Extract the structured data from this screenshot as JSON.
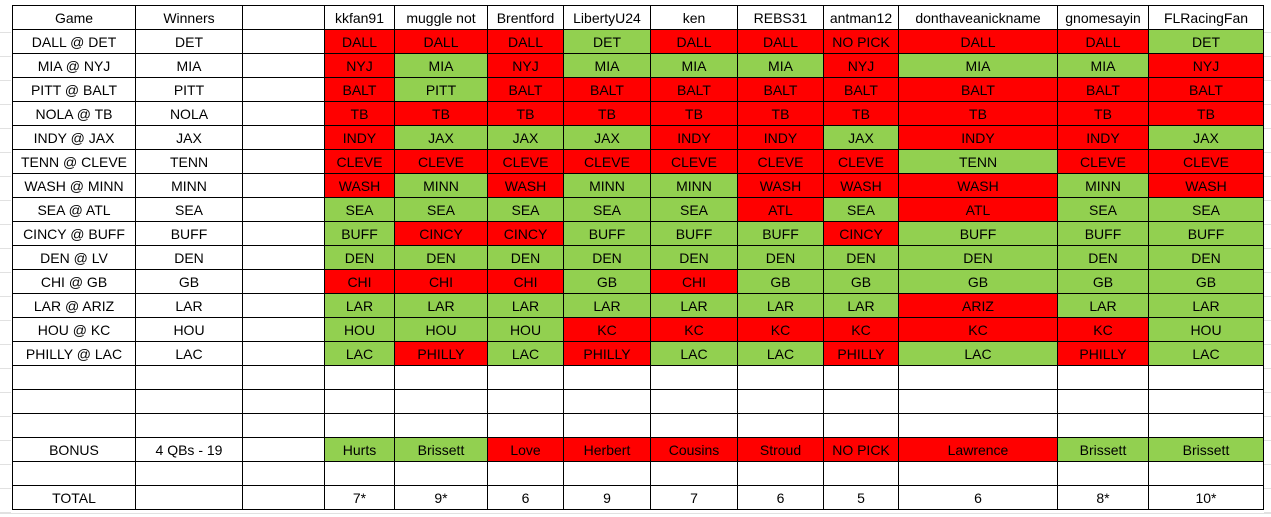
{
  "sheet": {
    "colors": {
      "correct": "#92D050",
      "wrong": "#FF0000",
      "gridline": "#e1e1e1",
      "border": "#000000"
    },
    "header": {
      "game": "Game",
      "winners": "Winners",
      "players": [
        "kkfan91",
        "muggle not",
        "Brentford",
        "LibertyU24",
        "ken",
        "REBS31",
        "antman12",
        "donthaveanickname",
        "gnomesayin",
        "FLRacingFan"
      ]
    },
    "games": [
      {
        "game": "DALL @ DET",
        "winner": "DET",
        "picks": [
          "DALL",
          "DALL",
          "DALL",
          "DET",
          "DALL",
          "DALL",
          "NO PICK",
          "DALL",
          "DALL",
          "DET"
        ],
        "correct": [
          0,
          0,
          0,
          1,
          0,
          0,
          0,
          0,
          0,
          1
        ]
      },
      {
        "game": "MIA @ NYJ",
        "winner": "MIA",
        "picks": [
          "NYJ",
          "MIA",
          "NYJ",
          "MIA",
          "MIA",
          "MIA",
          "NYJ",
          "MIA",
          "MIA",
          "NYJ"
        ],
        "correct": [
          0,
          1,
          0,
          1,
          1,
          1,
          0,
          1,
          1,
          0
        ]
      },
      {
        "game": "PITT @ BALT",
        "winner": "PITT",
        "picks": [
          "BALT",
          "PITT",
          "BALT",
          "BALT",
          "BALT",
          "BALT",
          "BALT",
          "BALT",
          "BALT",
          "BALT"
        ],
        "correct": [
          0,
          1,
          0,
          0,
          0,
          0,
          0,
          0,
          0,
          0
        ]
      },
      {
        "game": "NOLA @ TB",
        "winner": "NOLA",
        "picks": [
          "TB",
          "TB",
          "TB",
          "TB",
          "TB",
          "TB",
          "TB",
          "TB",
          "TB",
          "TB"
        ],
        "correct": [
          0,
          0,
          0,
          0,
          0,
          0,
          0,
          0,
          0,
          0
        ]
      },
      {
        "game": "INDY @ JAX",
        "winner": "JAX",
        "picks": [
          "INDY",
          "JAX",
          "JAX",
          "JAX",
          "INDY",
          "INDY",
          "JAX",
          "INDY",
          "INDY",
          "JAX"
        ],
        "correct": [
          0,
          1,
          1,
          1,
          0,
          0,
          1,
          0,
          0,
          1
        ]
      },
      {
        "game": "TENN @ CLEVE",
        "winner": "TENN",
        "picks": [
          "CLEVE",
          "CLEVE",
          "CLEVE",
          "CLEVE",
          "CLEVE",
          "CLEVE",
          "CLEVE",
          "TENN",
          "CLEVE",
          "CLEVE"
        ],
        "correct": [
          0,
          0,
          0,
          0,
          0,
          0,
          0,
          1,
          0,
          0
        ]
      },
      {
        "game": "WASH @ MINN",
        "winner": "MINN",
        "picks": [
          "WASH",
          "MINN",
          "WASH",
          "MINN",
          "MINN",
          "WASH",
          "WASH",
          "WASH",
          "MINN",
          "WASH"
        ],
        "correct": [
          0,
          1,
          0,
          1,
          1,
          0,
          0,
          0,
          1,
          0
        ]
      },
      {
        "game": "SEA @ ATL",
        "winner": "SEA",
        "picks": [
          "SEA",
          "SEA",
          "SEA",
          "SEA",
          "SEA",
          "ATL",
          "SEA",
          "ATL",
          "SEA",
          "SEA"
        ],
        "correct": [
          1,
          1,
          1,
          1,
          1,
          0,
          1,
          0,
          1,
          1
        ]
      },
      {
        "game": "CINCY @ BUFF",
        "winner": "BUFF",
        "picks": [
          "BUFF",
          "CINCY",
          "CINCY",
          "BUFF",
          "BUFF",
          "BUFF",
          "CINCY",
          "BUFF",
          "BUFF",
          "BUFF"
        ],
        "correct": [
          1,
          0,
          0,
          1,
          1,
          1,
          0,
          1,
          1,
          1
        ]
      },
      {
        "game": "DEN @ LV",
        "winner": "DEN",
        "picks": [
          "DEN",
          "DEN",
          "DEN",
          "DEN",
          "DEN",
          "DEN",
          "DEN",
          "DEN",
          "DEN",
          "DEN"
        ],
        "correct": [
          1,
          1,
          1,
          1,
          1,
          1,
          1,
          1,
          1,
          1
        ]
      },
      {
        "game": "CHI @ GB",
        "winner": "GB",
        "picks": [
          "CHI",
          "CHI",
          "CHI",
          "GB",
          "CHI",
          "GB",
          "GB",
          "GB",
          "GB",
          "GB"
        ],
        "correct": [
          0,
          0,
          0,
          1,
          0,
          1,
          1,
          1,
          1,
          1
        ]
      },
      {
        "game": "LAR @ ARIZ",
        "winner": "LAR",
        "picks": [
          "LAR",
          "LAR",
          "LAR",
          "LAR",
          "LAR",
          "LAR",
          "LAR",
          "ARIZ",
          "LAR",
          "LAR"
        ],
        "correct": [
          1,
          1,
          1,
          1,
          1,
          1,
          1,
          0,
          1,
          1
        ]
      },
      {
        "game": "HOU @ KC",
        "winner": "HOU",
        "picks": [
          "HOU",
          "HOU",
          "HOU",
          "KC",
          "KC",
          "KC",
          "KC",
          "KC",
          "KC",
          "HOU"
        ],
        "correct": [
          1,
          1,
          1,
          0,
          0,
          0,
          0,
          0,
          0,
          1
        ]
      },
      {
        "game": "PHILLY @ LAC",
        "winner": "LAC",
        "picks": [
          "LAC",
          "PHILLY",
          "LAC",
          "PHILLY",
          "LAC",
          "LAC",
          "PHILLY",
          "LAC",
          "PHILLY",
          "LAC"
        ],
        "correct": [
          1,
          0,
          1,
          0,
          1,
          1,
          0,
          1,
          0,
          1
        ]
      }
    ],
    "bonus": {
      "label": "BONUS",
      "detail": "4 QBs - 19",
      "picks": [
        "Hurts",
        "Brissett",
        "Love",
        "Herbert",
        "Cousins",
        "Stroud",
        "NO PICK",
        "Lawrence",
        "Brissett",
        "Brissett"
      ],
      "correct": [
        1,
        1,
        0,
        0,
        0,
        0,
        0,
        0,
        1,
        1
      ]
    },
    "total": {
      "label": "TOTAL",
      "values": [
        "7*",
        "9*",
        "6",
        "9",
        "7",
        "6",
        "5",
        "6",
        "8*",
        "10*"
      ]
    },
    "layout": {
      "blank_rows_before_bonus": 3,
      "blank_rows_after_bonus": 1
    }
  }
}
